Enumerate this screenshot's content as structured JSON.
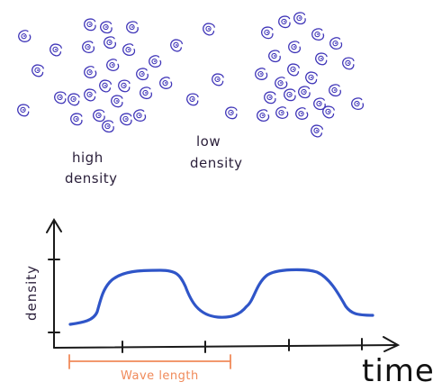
{
  "labels": {
    "high_density": [
      "high",
      "density"
    ],
    "low_density": [
      "low",
      "density"
    ],
    "y_axis": "density",
    "x_axis": "time",
    "wavelength": "Wave length"
  },
  "colors": {
    "ink": "#2a1f3a",
    "molecule": "#3f35b8",
    "curve": "#2f55c8",
    "wavelength": "#f08a5a"
  },
  "icons": {
    "molecule": "molecule-icon"
  }
}
